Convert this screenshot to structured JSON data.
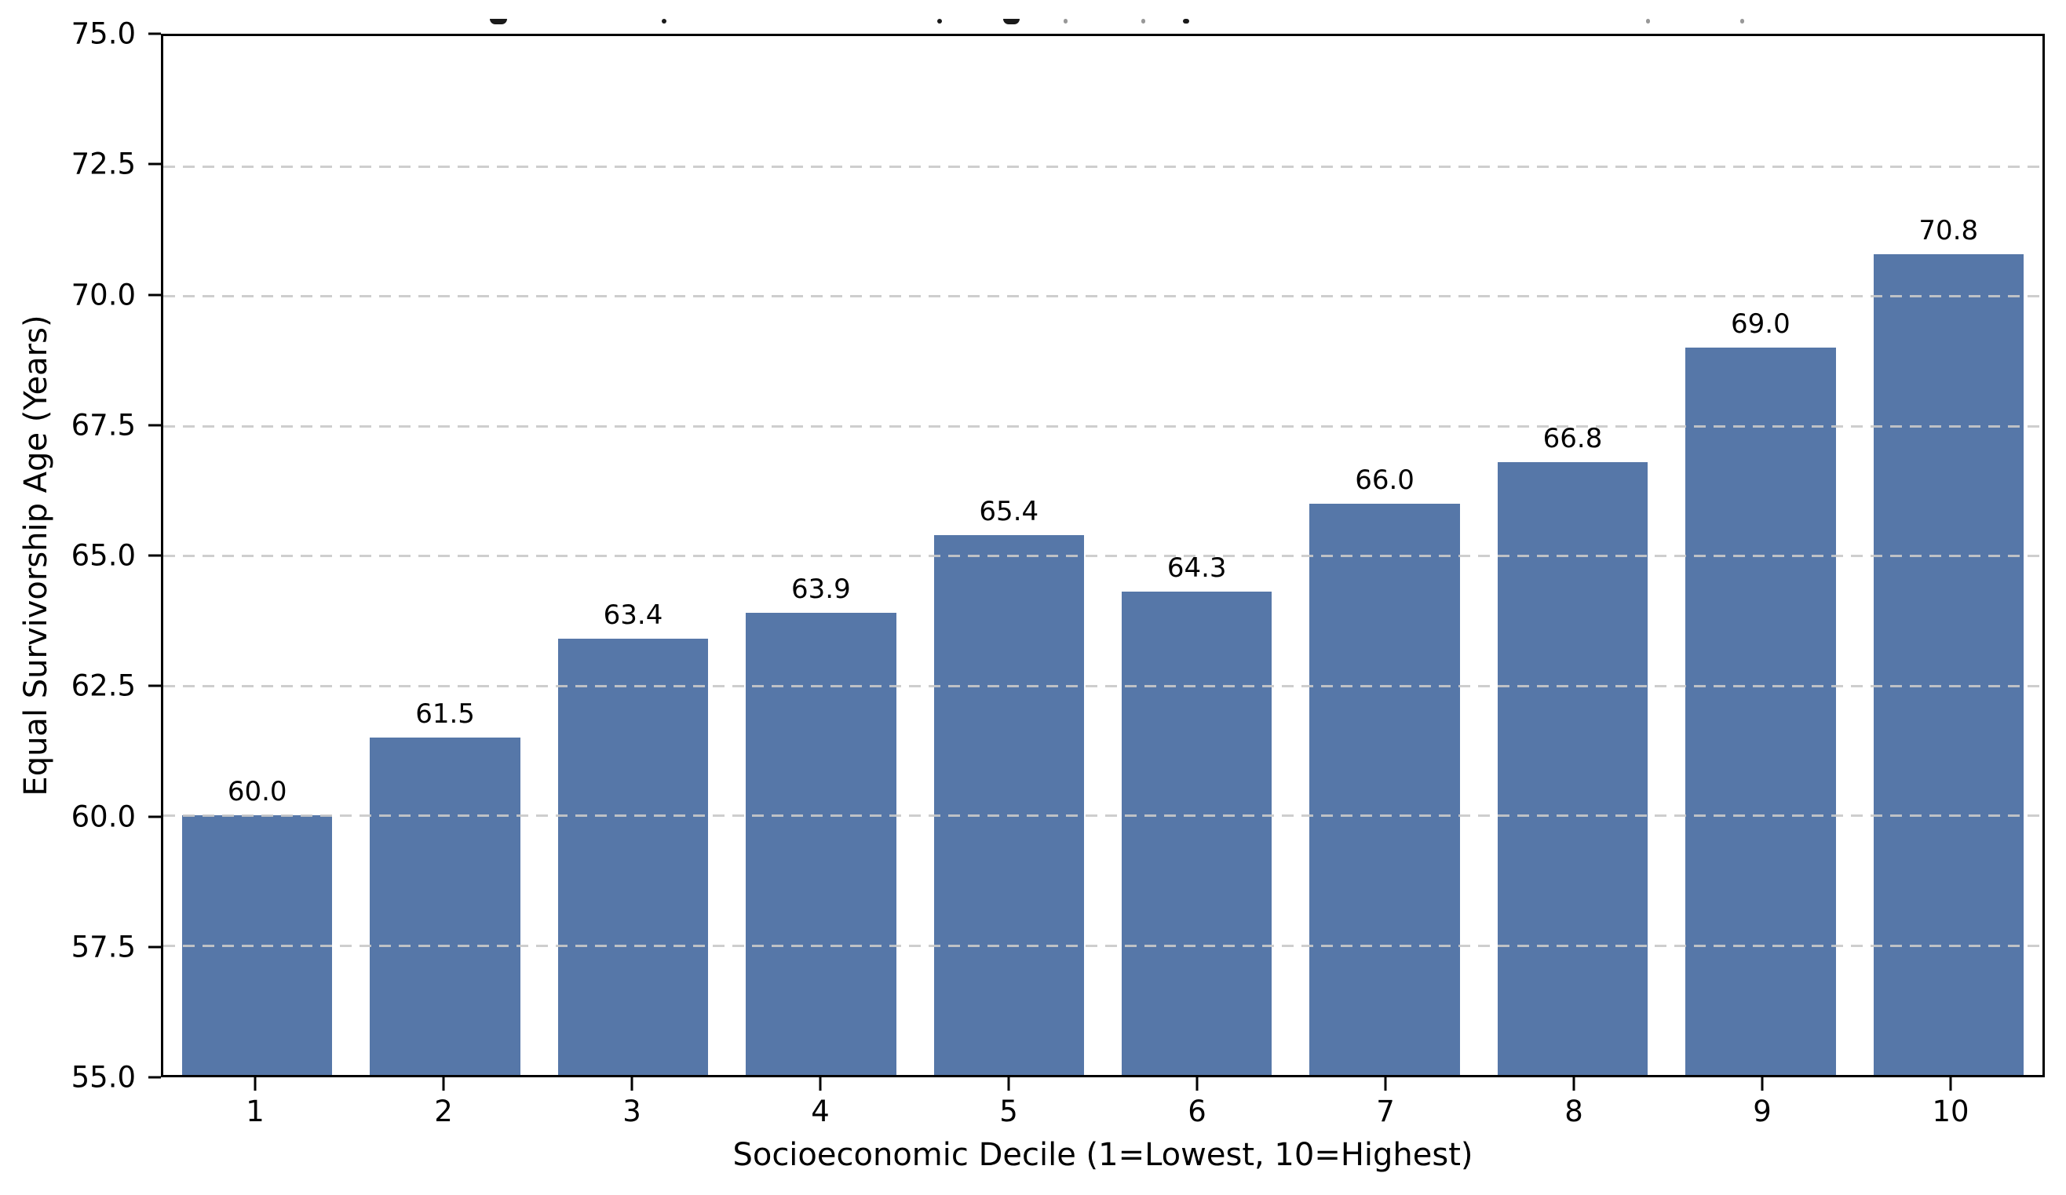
{
  "chart_data": {
    "type": "bar",
    "title": "",
    "xlabel": "Socioeconomic Decile (1=Lowest, 10=Highest)",
    "ylabel": "Equal Survivorship Age (Years)",
    "categories": [
      "1",
      "2",
      "3",
      "4",
      "5",
      "6",
      "7",
      "8",
      "9",
      "10"
    ],
    "values": [
      60.0,
      61.5,
      63.4,
      63.9,
      65.4,
      64.3,
      66.0,
      66.8,
      69.0,
      70.8
    ],
    "bar_labels": [
      "60.0",
      "61.5",
      "63.4",
      "63.9",
      "65.4",
      "64.3",
      "66.0",
      "66.8",
      "69.0",
      "70.8"
    ],
    "ylim": [
      55.0,
      75.0
    ],
    "yticks": [
      55.0,
      57.5,
      60.0,
      62.5,
      65.0,
      67.5,
      70.0,
      72.5,
      75.0
    ],
    "ytick_labels": [
      "55.0",
      "57.5",
      "60.0",
      "62.5",
      "65.0",
      "67.5",
      "70.0",
      "72.5",
      "75.0"
    ],
    "grid": "horizontal-dashed",
    "legend": "none",
    "bar_width_fraction": 0.8
  },
  "colors": {
    "bar": "#5677A8",
    "grid": "#c9c9c9",
    "spine": "#000000",
    "text": "#000000",
    "background": "#ffffff"
  }
}
